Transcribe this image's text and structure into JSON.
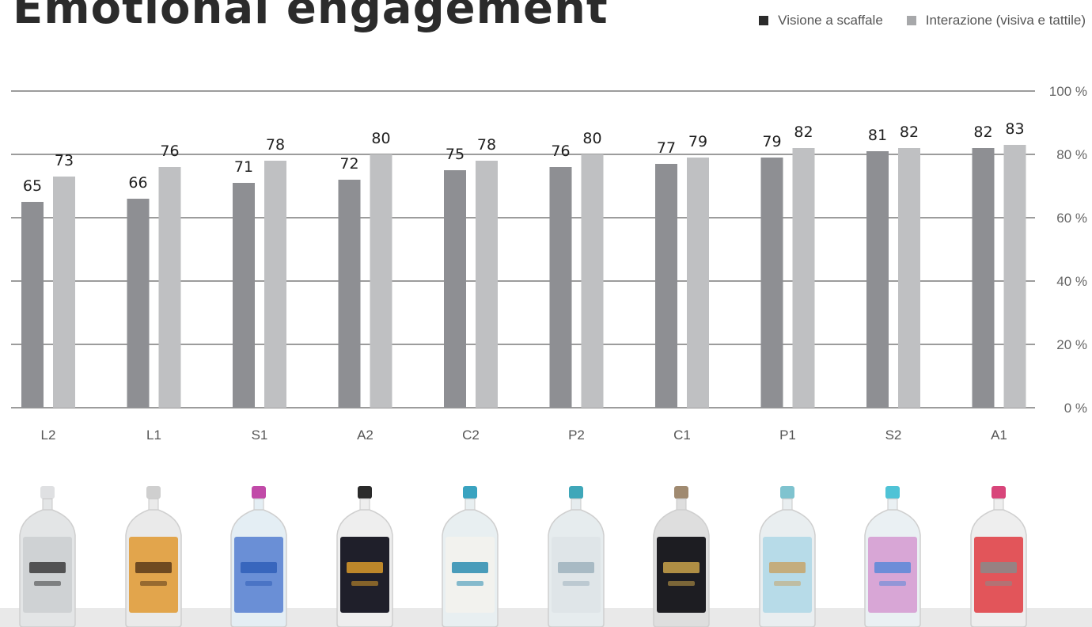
{
  "title": "Emotional engagement",
  "legend": [
    {
      "label": "Visione a scaffale",
      "color": "#8e8f93"
    },
    {
      "label": "Interazione (visiva e tattile)",
      "color": "#bfc0c2"
    }
  ],
  "chart_data": {
    "type": "bar",
    "title": "Emotional engagement",
    "categories": [
      "L2",
      "L1",
      "S1",
      "A2",
      "C2",
      "P2",
      "C1",
      "P1",
      "S2",
      "A1"
    ],
    "series": [
      {
        "name": "Visione a scaffale",
        "color": "#8e8f93",
        "values": [
          65,
          66,
          71,
          72,
          75,
          76,
          77,
          79,
          81,
          82
        ]
      },
      {
        "name": "Interazione (visiva e tattile)",
        "color": "#bfc0c2",
        "values": [
          73,
          76,
          78,
          80,
          78,
          80,
          79,
          82,
          82,
          83
        ]
      }
    ],
    "y_ticks": [
      "100 %",
      "80 %",
      "60 %",
      "40 %",
      "20 %",
      "0 %"
    ],
    "ylim": [
      0,
      100
    ],
    "grid": true,
    "legend_position": "top-right"
  },
  "bottles": [
    {
      "name": "bottle-l2",
      "cap": "#dfe0e2",
      "body": "#e3e5e6",
      "label": "#cfd2d4",
      "accent": "#3c3c3c"
    },
    {
      "name": "bottle-l1",
      "cap": "#cfcfcf",
      "body": "#eaeaea",
      "label": "#e2a54c",
      "accent": "#5a3a1a"
    },
    {
      "name": "bottle-s1",
      "cap": "#c14aa8",
      "body": "#e4eef4",
      "label": "#6a8fd6",
      "accent": "#2f5fb8"
    },
    {
      "name": "bottle-a2",
      "cap": "#2a2a2a",
      "body": "#eeeeee",
      "label": "#1f1f2a",
      "accent": "#d99a2a"
    },
    {
      "name": "bottle-c2",
      "cap": "#3aa3c0",
      "body": "#e8eff1",
      "label": "#f2f2ee",
      "accent": "#2b8db0"
    },
    {
      "name": "bottle-p2",
      "cap": "#3fa7b9",
      "body": "#e6ecee",
      "label": "#dfe5e8",
      "accent": "#9fb3bd"
    },
    {
      "name": "bottle-c1",
      "cap": "#a08a70",
      "body": "#dedede",
      "label": "#1d1d22",
      "accent": "#c9a24a"
    },
    {
      "name": "bottle-p1",
      "cap": "#7fc3cf",
      "body": "#e9eef0",
      "label": "#b7dbe8",
      "accent": "#c7a46a"
    },
    {
      "name": "bottle-s2",
      "cap": "#4fc3d6",
      "body": "#eaf0f3",
      "label": "#d8a6d6",
      "accent": "#5a88d8"
    },
    {
      "name": "bottle-a1",
      "cap": "#d8457a",
      "body": "#eeeeee",
      "label": "#e2555a",
      "accent": "#8a8a8a"
    }
  ]
}
